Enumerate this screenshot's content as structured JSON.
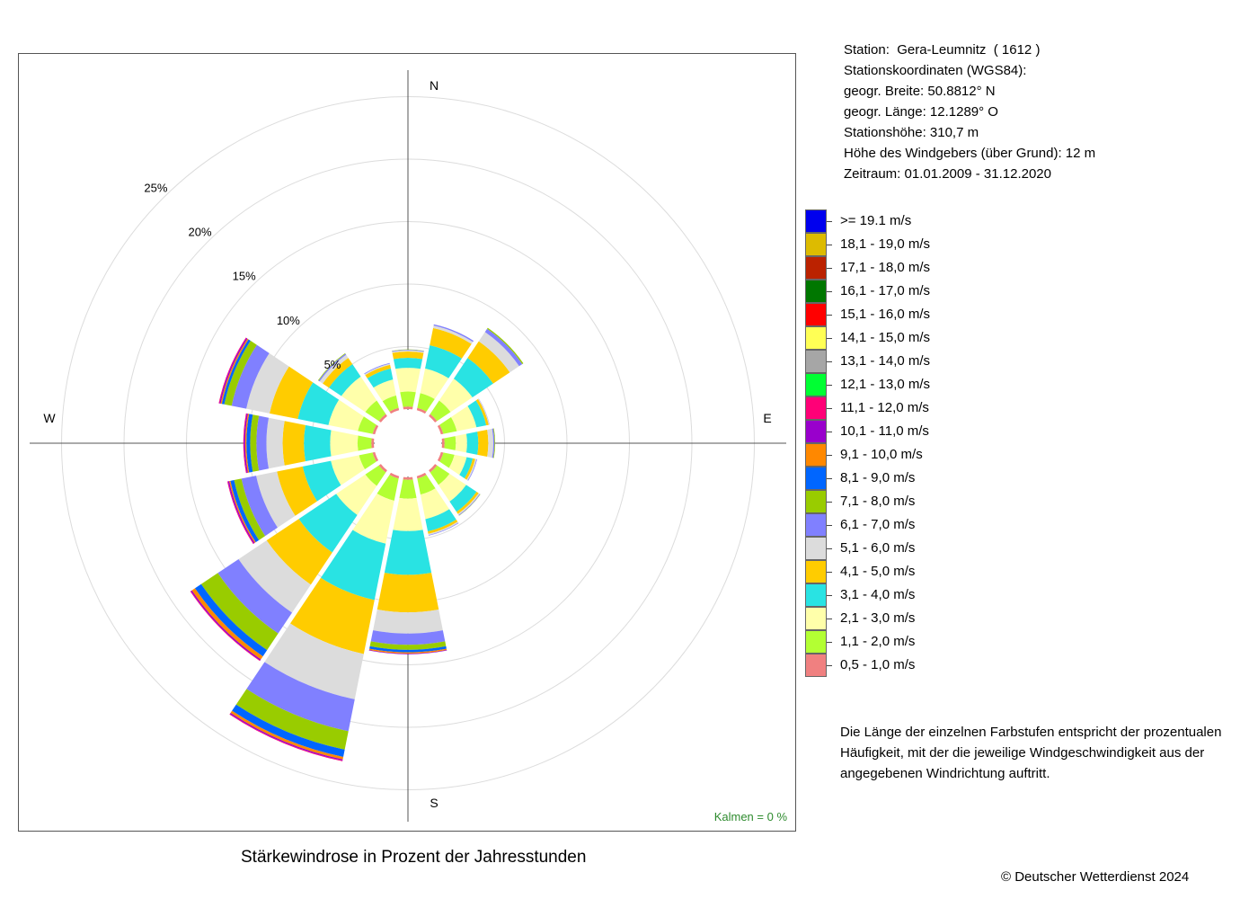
{
  "station_info": {
    "lines": [
      "Station:  Gera-Leumnitz  ( 1612 )",
      "Stationskoordinaten (WGS84):",
      "geogr. Breite: 50.8812° N",
      "geogr. Länge: 12.1289° O",
      "Stationshöhe: 310,7 m",
      "Höhe des Windgebers (über Grund): 12 m",
      "Zeitraum: 01.01.2009 - 31.12.2020"
    ]
  },
  "explanation": "Die Länge der einzelnen Farbstufen entspricht der prozentualen Häufigkeit, mit der die jeweilige Windgeschwindigkeit aus der angegebenen Windrichtung auftritt.",
  "caption": "Stärkewindrose in Prozent der Jahresstunden",
  "copyright": "© Deutscher Wetterdienst  2024",
  "chart_data": {
    "type": "windrose",
    "compass_labels": {
      "N": "N",
      "E": "E",
      "S": "S",
      "W": "W"
    },
    "ring_labels": [
      "5%",
      "10%",
      "15%",
      "20%",
      "25%"
    ],
    "rings": [
      5,
      10,
      15,
      20,
      25
    ],
    "calm_label": "Kalmen  =  0 %",
    "calm_color": "#2e8b2e",
    "directions": [
      "N",
      "NNE",
      "NE",
      "ENE",
      "E",
      "ESE",
      "SE",
      "SSE",
      "S",
      "SSW",
      "SW",
      "WSW",
      "W",
      "WNW",
      "NW",
      "NNW"
    ],
    "direction_degrees": [
      0,
      22.5,
      45,
      67.5,
      90,
      112.5,
      135,
      157.5,
      180,
      202.5,
      225,
      247.5,
      270,
      292.5,
      315,
      337.5
    ],
    "classes": [
      {
        "label": "0,5 - 1,0 m/s",
        "color": "#f08080"
      },
      {
        "label": "1,1 - 2,0 m/s",
        "color": "#b3ff33"
      },
      {
        "label": "2,1 - 3,0 m/s",
        "color": "#ffffaa"
      },
      {
        "label": "3,1 - 4,0 m/s",
        "color": "#29e3e3"
      },
      {
        "label": "4,1 - 5,0 m/s",
        "color": "#ffcc00"
      },
      {
        "label": "5,1 - 6,0 m/s",
        "color": "#dcdcdc"
      },
      {
        "label": "6,1 - 7,0 m/s",
        "color": "#8080ff"
      },
      {
        "label": "7,1 - 8,0 m/s",
        "color": "#99cc00"
      },
      {
        "label": "8,1 - 9,0 m/s",
        "color": "#0066ff"
      },
      {
        "label": "9,1 - 10,0 m/s",
        "color": "#ff8800"
      },
      {
        "label": "10,1 - 11,0 m/s",
        "color": "#9900cc"
      },
      {
        "label": "11,1 - 12,0 m/s",
        "color": "#ff0077"
      },
      {
        "label": "12,1 - 13,0 m/s",
        "color": "#00ff33"
      },
      {
        "label": "13,1 - 14,0 m/s",
        "color": "#a6a6a6"
      },
      {
        "label": "14,1 - 15,0 m/s",
        "color": "#ffff55"
      },
      {
        "label": "15,1 - 16,0 m/s",
        "color": "#ff0000"
      },
      {
        "label": "16,1 - 17,0 m/s",
        "color": "#007700"
      },
      {
        "label": "17,1 - 18,0 m/s",
        "color": "#bb2200"
      },
      {
        "label": "18,1 - 19,0 m/s",
        "color": "#ddbb00"
      },
      {
        "label": ">= 19.1 m/s",
        "color": "#0000ee"
      }
    ],
    "values": [
      [
        0.2,
        1.2,
        1.9,
        0.8,
        0.5,
        0.1,
        0.05,
        0.02,
        0,
        0,
        0,
        0,
        0,
        0,
        0,
        0,
        0,
        0,
        0,
        0
      ],
      [
        0.2,
        1.2,
        2.0,
        1.9,
        1.4,
        0.2,
        0.1,
        0,
        0,
        0,
        0,
        0,
        0,
        0,
        0,
        0,
        0,
        0,
        0,
        0
      ],
      [
        0.2,
        1.3,
        2.1,
        2.0,
        1.6,
        0.9,
        0.3,
        0.1,
        0,
        0,
        0,
        0,
        0,
        0,
        0,
        0,
        0,
        0,
        0,
        0
      ],
      [
        0.2,
        1.1,
        1.6,
        0.8,
        0.2,
        0.05,
        0.02,
        0,
        0,
        0,
        0,
        0,
        0,
        0,
        0,
        0,
        0,
        0,
        0,
        0
      ],
      [
        0.2,
        0.9,
        0.9,
        0.9,
        0.8,
        0.4,
        0.1,
        0.05,
        0,
        0,
        0,
        0,
        0,
        0,
        0,
        0,
        0,
        0,
        0,
        0
      ],
      [
        0.2,
        0.9,
        1.0,
        0.5,
        0.2,
        0.1,
        0.05,
        0,
        0,
        0,
        0,
        0,
        0,
        0,
        0,
        0,
        0,
        0,
        0,
        0
      ],
      [
        0.2,
        1.2,
        1.6,
        1.0,
        0.2,
        0.1,
        0.05,
        0.02,
        0,
        0,
        0,
        0,
        0,
        0,
        0,
        0,
        0,
        0,
        0,
        0
      ],
      [
        0.2,
        1.3,
        2.0,
        1.0,
        0.2,
        0.1,
        0.05,
        0,
        0,
        0,
        0,
        0,
        0,
        0,
        0,
        0,
        0,
        0,
        0,
        0
      ],
      [
        0.2,
        1.5,
        2.6,
        3.5,
        3.0,
        1.7,
        0.9,
        0.4,
        0.2,
        0.1,
        0.05,
        0,
        0,
        0,
        0,
        0,
        0,
        0,
        0,
        0
      ],
      [
        0.2,
        1.8,
        3.5,
        4.6,
        4.4,
        3.7,
        2.6,
        1.5,
        0.6,
        0.2,
        0.1,
        0.05,
        0,
        0,
        0,
        0,
        0,
        0,
        0,
        0
      ],
      [
        0.2,
        1.3,
        2.8,
        3.6,
        3.1,
        2.7,
        2.0,
        1.6,
        0.6,
        0.3,
        0.1,
        0.05,
        0,
        0,
        0,
        0,
        0,
        0,
        0,
        0
      ],
      [
        0.2,
        1.1,
        2.3,
        2.3,
        2.1,
        1.7,
        1.2,
        0.6,
        0.3,
        0.1,
        0.1,
        0.05,
        0,
        0,
        0,
        0,
        0,
        0,
        0,
        0
      ],
      [
        0.2,
        1.1,
        2.2,
        2.1,
        1.7,
        1.3,
        0.8,
        0.5,
        0.3,
        0.1,
        0.1,
        0.05,
        0,
        0,
        0,
        0,
        0,
        0,
        0,
        0
      ],
      [
        0.2,
        1.2,
        2.4,
        2.5,
        2.3,
        1.9,
        1.2,
        0.6,
        0.2,
        0.1,
        0.1,
        0.05,
        0,
        0,
        0,
        0,
        0,
        0,
        0,
        0
      ],
      [
        0.2,
        1.3,
        2.3,
        1.2,
        0.6,
        0.3,
        0.1,
        0.05,
        0,
        0,
        0,
        0,
        0,
        0,
        0,
        0,
        0,
        0,
        0,
        0
      ],
      [
        0.2,
        1.0,
        1.3,
        0.9,
        0.3,
        0.1,
        0.05,
        0,
        0,
        0,
        0,
        0,
        0,
        0,
        0,
        0,
        0,
        0,
        0,
        0
      ]
    ]
  }
}
